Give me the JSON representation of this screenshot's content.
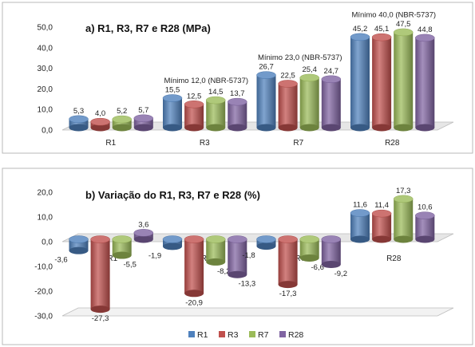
{
  "colors": {
    "R1": "#4f81bd",
    "R3": "#c0504d",
    "R7": "#9bbb59",
    "R28": "#8064a2",
    "floor": "#e6e6e6",
    "floor_edge": "#bdbdbd"
  },
  "legend": {
    "placement": "bottom",
    "items": [
      "R1",
      "R3",
      "R7",
      "R28"
    ]
  },
  "chart_data": [
    {
      "type": "bar",
      "title": "a) R1, R3, R7 e R28 (MPa)",
      "categories": [
        "R1",
        "R3",
        "R7",
        "R28"
      ],
      "series": [
        {
          "name": "R1",
          "values": [
            5.3,
            15.5,
            26.7,
            45.2
          ],
          "labels": [
            "5,3",
            "15,5",
            "26,7",
            "45,2"
          ]
        },
        {
          "name": "R3",
          "values": [
            4.0,
            12.5,
            22.5,
            45.1
          ],
          "labels": [
            "4,0",
            "12,5",
            "22,5",
            "45,1"
          ]
        },
        {
          "name": "R7",
          "values": [
            5.2,
            14.5,
            25.4,
            47.5
          ],
          "labels": [
            "5,2",
            "14,5",
            "25,4",
            "47,5"
          ]
        },
        {
          "name": "R28",
          "values": [
            5.7,
            13.7,
            24.7,
            44.8
          ],
          "labels": [
            "5,7",
            "13,7",
            "24,7",
            "44,8"
          ]
        }
      ],
      "ylim": [
        0,
        50
      ],
      "yticks": [
        0,
        10,
        20,
        30,
        40,
        50
      ],
      "ytick_labels": [
        "0,0",
        "10,0",
        "20,0",
        "30,0",
        "40,0",
        "50,0"
      ],
      "annotations": [
        {
          "category": "R3",
          "text": "Mínimo 12,0 (NBR-5737)"
        },
        {
          "category": "R7",
          "text": "Mínimo 23,0 (NBR-5737)"
        },
        {
          "category": "R28",
          "text": "Mínimo 40,0 (NBR-5737)"
        }
      ]
    },
    {
      "type": "bar",
      "title": "b) Variação do R1, R3, R7 e R28 (%)",
      "categories": [
        "R1",
        "R3",
        "R7",
        "R28"
      ],
      "series": [
        {
          "name": "R1",
          "values": [
            -3.6,
            -1.9,
            -1.8,
            11.6
          ],
          "labels": [
            "-3,6",
            "-1,9",
            "-1,8",
            "11,6"
          ]
        },
        {
          "name": "R3",
          "values": [
            -27.3,
            -20.9,
            -17.3,
            11.4
          ],
          "labels": [
            "-27,3",
            "-20,9",
            "-17,3",
            "11,4"
          ]
        },
        {
          "name": "R7",
          "values": [
            -5.5,
            -8.2,
            -6.6,
            17.3
          ],
          "labels": [
            "-5,5",
            "-8,2",
            "-6,6",
            "17,3"
          ]
        },
        {
          "name": "R28",
          "values": [
            3.6,
            -13.3,
            -9.2,
            10.6
          ],
          "labels": [
            "3,6",
            "-13,3",
            "-9,2",
            "10,6"
          ]
        }
      ],
      "ylim": [
        -30,
        20
      ],
      "yticks": [
        -30,
        -20,
        -10,
        0,
        10,
        20
      ],
      "ytick_labels": [
        "-30,0",
        "-20,0",
        "-10,0",
        "0,0",
        "10,0",
        "20,0"
      ]
    }
  ]
}
